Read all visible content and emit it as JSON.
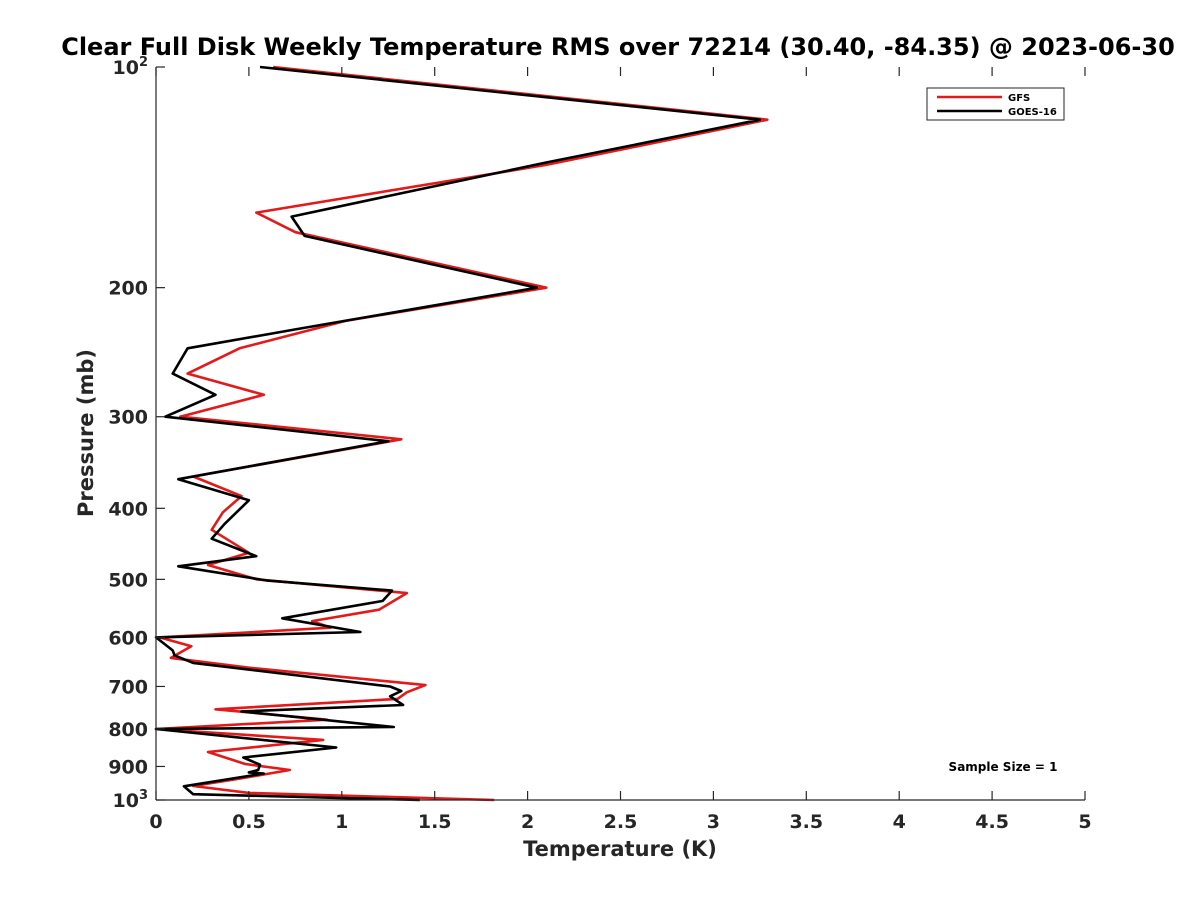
{
  "chart_data": {
    "type": "line",
    "title": "Clear Full Disk Weekly Temperature RMS over 72214 (30.40, -84.35) @ 2023-06-30",
    "xlabel": "Temperature (K)",
    "ylabel": "Pressure (mb)",
    "xlim": [
      0,
      5
    ],
    "ylim": [
      100,
      1000
    ],
    "y_scale": "log",
    "y_reversed": true,
    "grid": false,
    "legend_position": "top-right",
    "x_ticks": [
      "0",
      "0.5",
      "1",
      "1.5",
      "2",
      "2.5",
      "3",
      "3.5",
      "4",
      "4.5",
      "5"
    ],
    "y_ticks": [
      {
        "value": 100,
        "base": "10",
        "exp": "2"
      },
      {
        "value": 200,
        "label": "200"
      },
      {
        "value": 300,
        "label": "300"
      },
      {
        "value": 400,
        "label": "400"
      },
      {
        "value": 500,
        "label": "500"
      },
      {
        "value": 600,
        "label": "600"
      },
      {
        "value": 700,
        "label": "700"
      },
      {
        "value": 800,
        "label": "800"
      },
      {
        "value": 900,
        "label": "900"
      },
      {
        "value": 1000,
        "base": "10",
        "exp": "3"
      }
    ],
    "annotation": "Sample Size = 1",
    "series": [
      {
        "name": "GFS",
        "color": "#e41a1a",
        "points": [
          [
            0.63,
            100
          ],
          [
            3.29,
            118
          ],
          [
            2.1,
            136
          ],
          [
            0.54,
            158
          ],
          [
            0.75,
            168
          ],
          [
            2.1,
            200
          ],
          [
            1.02,
            222
          ],
          [
            0.45,
            242
          ],
          [
            0.17,
            262
          ],
          [
            0.58,
            280
          ],
          [
            0.13,
            300
          ],
          [
            1.32,
            322
          ],
          [
            0.2,
            362
          ],
          [
            0.46,
            385
          ],
          [
            0.36,
            405
          ],
          [
            0.3,
            428
          ],
          [
            0.5,
            460
          ],
          [
            0.28,
            478
          ],
          [
            0.54,
            500
          ],
          [
            1.35,
            522
          ],
          [
            1.2,
            550
          ],
          [
            0.84,
            570
          ],
          [
            0.94,
            582
          ],
          [
            0.02,
            600
          ],
          [
            0.19,
            617
          ],
          [
            0.08,
            640
          ],
          [
            0.5,
            660
          ],
          [
            1.45,
            697
          ],
          [
            1.35,
            713
          ],
          [
            1.3,
            728
          ],
          [
            0.32,
            752
          ],
          [
            0.92,
            777
          ],
          [
            0.0,
            800
          ],
          [
            0.9,
            828
          ],
          [
            0.28,
            860
          ],
          [
            0.48,
            893
          ],
          [
            0.72,
            910
          ],
          [
            0.45,
            935
          ],
          [
            0.2,
            957
          ],
          [
            0.5,
            978
          ],
          [
            1.82,
            1000
          ]
        ]
      },
      {
        "name": "GOES-16",
        "color": "#000000",
        "points": [
          [
            0.56,
            100
          ],
          [
            3.25,
            118
          ],
          [
            2.1,
            135
          ],
          [
            0.73,
            160
          ],
          [
            0.8,
            170
          ],
          [
            2.05,
            200
          ],
          [
            0.75,
            228
          ],
          [
            0.17,
            242
          ],
          [
            0.09,
            262
          ],
          [
            0.32,
            280
          ],
          [
            0.05,
            300
          ],
          [
            1.25,
            324
          ],
          [
            0.12,
            365
          ],
          [
            0.5,
            390
          ],
          [
            0.37,
            420
          ],
          [
            0.3,
            440
          ],
          [
            0.54,
            465
          ],
          [
            0.12,
            480
          ],
          [
            0.6,
            502
          ],
          [
            1.27,
            518
          ],
          [
            1.22,
            535
          ],
          [
            0.68,
            565
          ],
          [
            1.1,
            590
          ],
          [
            0.0,
            600
          ],
          [
            0.09,
            625
          ],
          [
            0.1,
            635
          ],
          [
            0.2,
            650
          ],
          [
            1.26,
            700
          ],
          [
            1.32,
            710
          ],
          [
            1.26,
            722
          ],
          [
            1.33,
            742
          ],
          [
            0.46,
            757
          ],
          [
            1.28,
            795
          ],
          [
            0.0,
            800
          ],
          [
            0.97,
            848
          ],
          [
            0.47,
            875
          ],
          [
            0.56,
            895
          ],
          [
            0.55,
            910
          ],
          [
            0.5,
            917
          ],
          [
            0.58,
            920
          ],
          [
            0.15,
            958
          ],
          [
            0.2,
            982
          ],
          [
            1.42,
            1000
          ]
        ]
      }
    ]
  }
}
